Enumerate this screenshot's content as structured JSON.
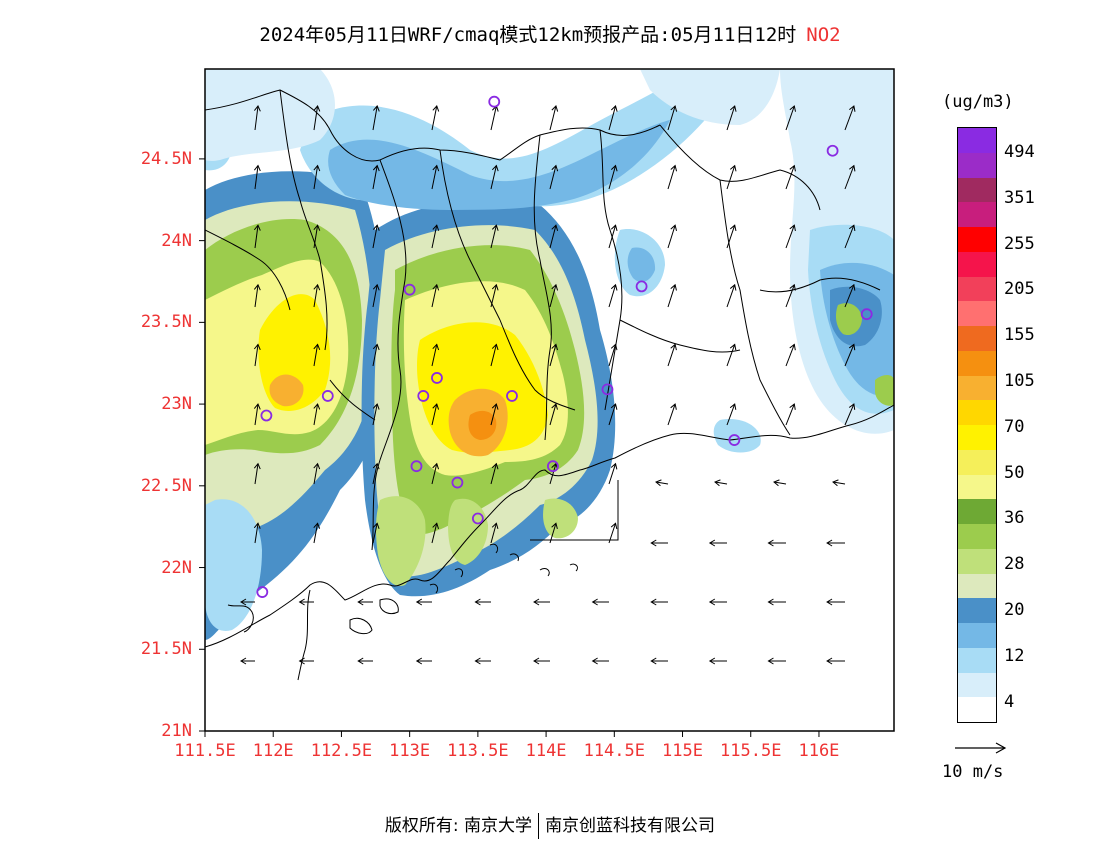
{
  "header": {
    "title": "2024年05月11日WRF/cmaq模式12km预报产品:05月11日12时",
    "pollutant": "NO2"
  },
  "axes": {
    "lat_labels": [
      "24.5N",
      "24N",
      "23.5N",
      "23N",
      "22.5N",
      "22N",
      "21.5N",
      "21N"
    ],
    "lon_labels": [
      "111.5E",
      "112E",
      "112.5E",
      "113E",
      "113.5E",
      "114E",
      "114.5E",
      "115E",
      "115.5E",
      "116E"
    ],
    "lat_range": [
      21,
      25.05
    ],
    "lon_range": [
      111.5,
      116.55
    ]
  },
  "colorbar": {
    "unit": "(ug/m3)",
    "labels": [
      "494",
      "351",
      "255",
      "205",
      "155",
      "105",
      "70",
      "50",
      "36",
      "28",
      "20",
      "12",
      "4"
    ],
    "colors_bottom_to_top": [
      "#ffffff",
      "#d8eefa",
      "#a8dcf5",
      "#74b8e6",
      "#4a90c8",
      "#dde9bd",
      "#bfe07a",
      "#9ccc4d",
      "#6ea934",
      "#f5f78a",
      "#f5ef5a",
      "#fff200",
      "#ffd700",
      "#f8b030",
      "#f59010",
      "#ef6a1f",
      "#ff7070",
      "#f2405a",
      "#f5144b",
      "#ff0000",
      "#c81e7d",
      "#a02a60",
      "#9b2cc8",
      "#8a2be2"
    ]
  },
  "legend": {
    "vector_label": "10 m/s",
    "vector_color": "#000000"
  },
  "stations": [
    [
      113.62,
      24.85
    ],
    [
      116.1,
      24.55
    ],
    [
      113.0,
      23.7
    ],
    [
      114.7,
      23.72
    ],
    [
      116.35,
      23.55
    ],
    [
      112.4,
      23.05
    ],
    [
      111.95,
      22.93
    ],
    [
      113.1,
      23.05
    ],
    [
      113.2,
      23.16
    ],
    [
      113.75,
      23.05
    ],
    [
      114.45,
      23.09
    ],
    [
      113.05,
      22.62
    ],
    [
      113.35,
      22.52
    ],
    [
      114.05,
      22.62
    ],
    [
      113.5,
      22.3
    ],
    [
      115.38,
      22.78
    ],
    [
      111.92,
      21.85
    ]
  ],
  "footer": {
    "left": "版权所有: 南京大学",
    "right": "南京创蓝科技有限公司"
  }
}
